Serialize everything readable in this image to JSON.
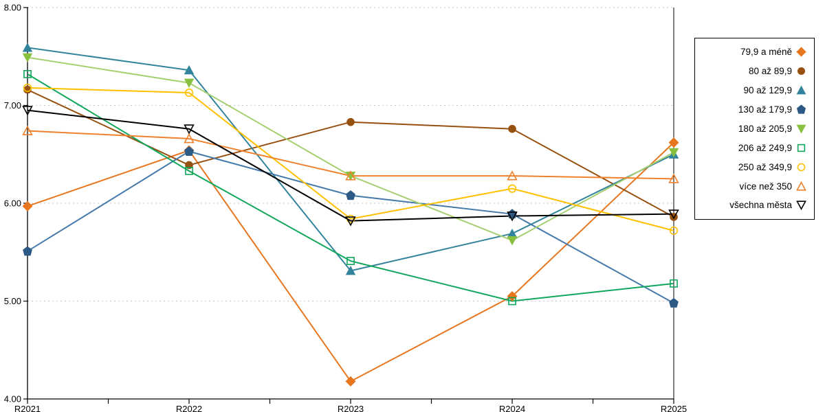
{
  "chart_data": {
    "type": "line",
    "title": "",
    "xlabel": "",
    "ylabel": "",
    "categories": [
      "R2021",
      "R2022",
      "R2023",
      "R2024",
      "R2025"
    ],
    "ylim": [
      4,
      8
    ],
    "y_ticks": [
      {
        "value": 4,
        "label": "4.00"
      },
      {
        "value": 5,
        "label": "5.00"
      },
      {
        "value": 6,
        "label": "6.00"
      },
      {
        "value": 7,
        "label": "7.00"
      },
      {
        "value": 8,
        "label": "8.00"
      }
    ],
    "grid": "horizontal-dashed",
    "legend_position": "right",
    "series": [
      {
        "name": "79,9 a méně",
        "color": "#E8761E",
        "marker": "diamond",
        "marker_filled": true,
        "values": [
          5.97,
          6.54,
          4.18,
          5.05,
          6.62
        ]
      },
      {
        "name": "80 až 89,9",
        "color": "#96500F",
        "marker": "circle",
        "marker_filled": true,
        "values": [
          7.16,
          6.39,
          6.83,
          6.76,
          5.86
        ]
      },
      {
        "name": "90 až 129,9",
        "color": "#31849B",
        "marker": "triangle-up",
        "marker_filled": true,
        "values": [
          7.59,
          7.36,
          5.31,
          5.69,
          6.5
        ]
      },
      {
        "name": "130 až 179,9",
        "color": "#4579A9",
        "marker_color": "#2D5985",
        "marker": "pentagon",
        "marker_filled": true,
        "values": [
          5.51,
          6.53,
          6.08,
          5.89,
          4.98
        ]
      },
      {
        "name": "180 až 205,9",
        "color": "#A6CF70",
        "marker_color": "#87C13F",
        "marker": "triangle-down",
        "marker_filled": true,
        "values": [
          7.49,
          7.23,
          6.28,
          5.62,
          6.52
        ]
      },
      {
        "name": "206 až 249,9",
        "color": "#0FA65C",
        "marker": "square",
        "marker_filled": false,
        "values": [
          7.32,
          6.33,
          5.41,
          5.0,
          5.18
        ]
      },
      {
        "name": "250 až 349,9",
        "color": "#FFC000",
        "marker": "circle",
        "marker_filled": false,
        "values": [
          7.18,
          7.13,
          5.84,
          6.15,
          5.72
        ]
      },
      {
        "name": "více než 350",
        "color": "#F0802B",
        "marker": "triangle-up",
        "marker_filled": false,
        "values": [
          6.74,
          6.66,
          6.28,
          6.28,
          6.25
        ]
      },
      {
        "name": "všechna města",
        "color": "#000000",
        "marker": "triangle-down",
        "marker_filled": false,
        "values": [
          6.95,
          6.76,
          5.82,
          5.87,
          5.89
        ]
      }
    ]
  },
  "style": {
    "grid_color": "#C3C3C3",
    "axis_color": "#000000",
    "background": "#FFFFFF",
    "legend_border": "#000000"
  }
}
